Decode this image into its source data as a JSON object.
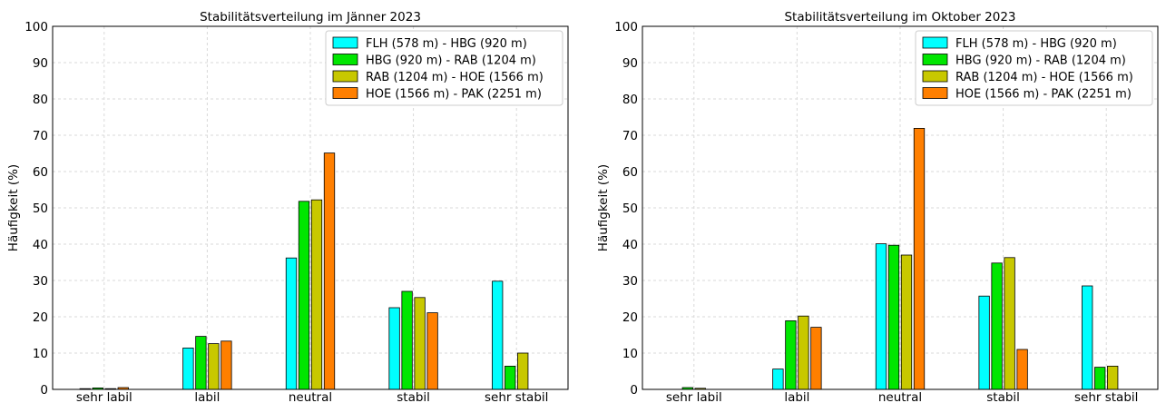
{
  "chart_data": [
    {
      "type": "bar",
      "title": "Stabilitätsverteilung im Jänner 2023",
      "xlabel": "",
      "ylabel": "Häufigkeit (%)",
      "ylim": [
        0,
        100
      ],
      "yticks": [
        "0",
        "10",
        "20",
        "30",
        "40",
        "50",
        "60",
        "70",
        "80",
        "90",
        "100"
      ],
      "grid": true,
      "legend_position": "top-right",
      "categories": [
        "sehr labil",
        "labil",
        "neutral",
        "stabil",
        "sehr stabil"
      ],
      "series": [
        {
          "name": "FLH (578 m) - HBG (920 m)",
          "color": "#00ffff",
          "values": [
            0.2,
            11.4,
            36.2,
            22.5,
            29.8
          ]
        },
        {
          "name": "HBG (920 m) - RAB (1204 m)",
          "color": "#00e600",
          "values": [
            0.4,
            14.6,
            51.8,
            27.0,
            6.4
          ]
        },
        {
          "name": "RAB (1204 m) - HOE (1566 m)",
          "color": "#c8c800",
          "values": [
            0.2,
            12.6,
            52.2,
            25.3,
            10.0
          ]
        },
        {
          "name": "HOE (1566 m) - PAK (2251 m)",
          "color": "#ff7f00",
          "values": [
            0.5,
            13.3,
            65.1,
            21.1,
            0.0
          ]
        }
      ]
    },
    {
      "type": "bar",
      "title": "Stabilitätsverteilung im Oktober 2023",
      "xlabel": "",
      "ylabel": "Häufigkeit (%)",
      "ylim": [
        0,
        100
      ],
      "yticks": [
        "0",
        "10",
        "20",
        "30",
        "40",
        "50",
        "60",
        "70",
        "80",
        "90",
        "100"
      ],
      "grid": true,
      "legend_position": "top-right",
      "categories": [
        "sehr labil",
        "labil",
        "neutral",
        "stabil",
        "sehr stabil"
      ],
      "series": [
        {
          "name": "FLH (578 m) - HBG (920 m)",
          "color": "#00ffff",
          "values": [
            0.0,
            5.6,
            40.1,
            25.7,
            28.5
          ]
        },
        {
          "name": "HBG (920 m) - RAB (1204 m)",
          "color": "#00e600",
          "values": [
            0.5,
            18.9,
            39.7,
            34.8,
            6.1
          ]
        },
        {
          "name": "RAB (1204 m) - HOE (1566 m)",
          "color": "#c8c800",
          "values": [
            0.3,
            20.2,
            37.0,
            36.3,
            6.4
          ]
        },
        {
          "name": "HOE (1566 m) - PAK (2251 m)",
          "color": "#ff7f00",
          "values": [
            0.0,
            17.1,
            71.9,
            11.0,
            0.0
          ]
        }
      ]
    }
  ]
}
